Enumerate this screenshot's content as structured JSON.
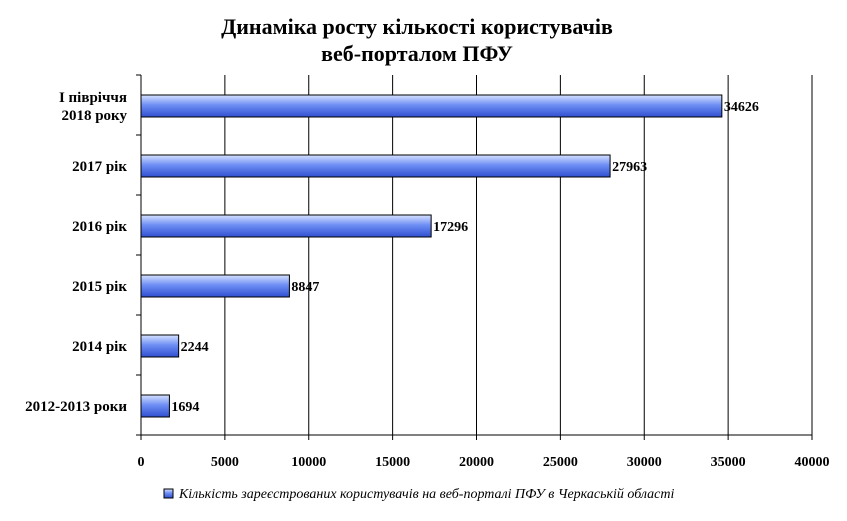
{
  "chart_data": {
    "type": "bar",
    "orientation": "horizontal",
    "title": [
      "Динаміка росту кількості користувачів",
      "веб-порталом ПФУ"
    ],
    "categories": [
      [
        "І півріччя",
        "2018 року"
      ],
      [
        "2017 рік"
      ],
      [
        "2016 рік"
      ],
      [
        "2015 рік"
      ],
      [
        "2014 рік"
      ],
      [
        "2012-2013 роки"
      ]
    ],
    "series": [
      {
        "name": "Кількість зареєстрованих користувачів на веб-порталі ПФУ в Черкаській області",
        "values": [
          34626,
          27963,
          17296,
          8847,
          2244,
          1694
        ]
      }
    ],
    "data_labels": [
      "34626",
      "27963",
      "17296",
      "8847",
      "2244",
      "1694"
    ],
    "xlim": [
      0,
      40000
    ],
    "x_ticks": [
      0,
      5000,
      10000,
      15000,
      20000,
      25000,
      30000,
      35000,
      40000
    ],
    "x_tick_labels": [
      "0",
      "5000",
      "10000",
      "15000",
      "20000",
      "25000",
      "30000",
      "35000",
      "40000"
    ],
    "grid": "vertical",
    "legend_position": "bottom",
    "colors": {
      "bar_light": "#d6e2ff",
      "bar_mid": "#6f8ff5",
      "bar_dark": "#2f4fd0",
      "bar_stroke": "#000000",
      "grid": "#000000"
    }
  }
}
